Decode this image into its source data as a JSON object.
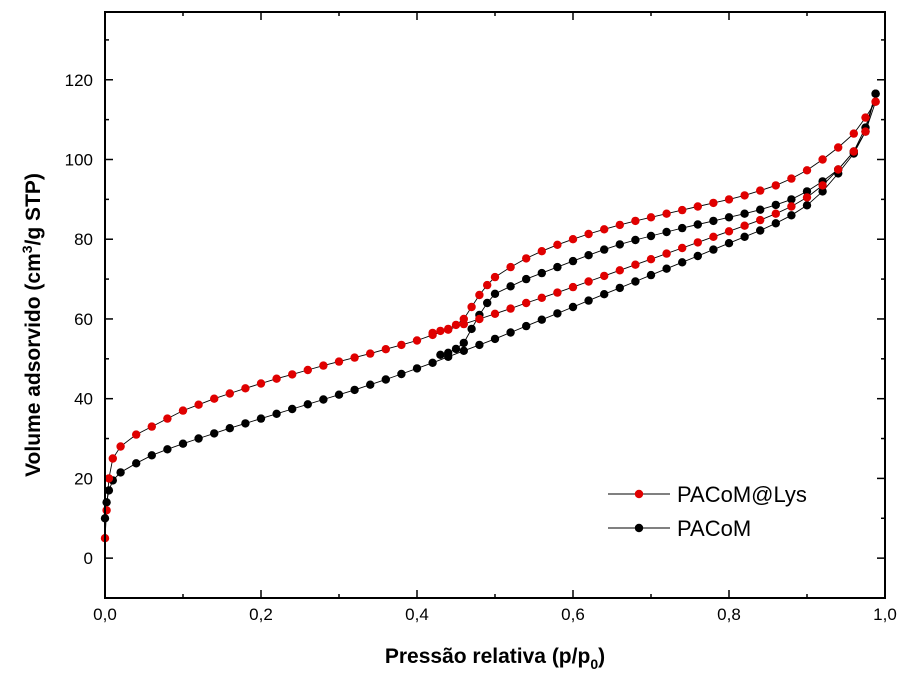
{
  "chart_data": {
    "type": "scatter",
    "title": "",
    "xlabel": "Pressão relativa (p/p",
    "xlabel_sub": "0",
    "xlabel_end": ")",
    "ylabel": "Volume adsorvido (cm",
    "ylabel_sup": "3",
    "ylabel_end": "/g STP)",
    "xlim": [
      0.0,
      1.0
    ],
    "ylim": [
      -10,
      137
    ],
    "xticks": [
      0.0,
      0.2,
      0.4,
      0.6,
      0.8,
      1.0
    ],
    "xtick_labels": [
      "0,0",
      "0,2",
      "0,4",
      "0,6",
      "0,8",
      "1,0"
    ],
    "yticks": [
      0,
      20,
      40,
      60,
      80,
      100,
      120
    ],
    "ytick_labels": [
      "0",
      "20",
      "40",
      "60",
      "80",
      "100",
      "120"
    ],
    "grid": false,
    "legend_position": "lower-right",
    "series": [
      {
        "name": "PACoM@Lys",
        "color": "#e00000",
        "adsorption": {
          "x": [
            0.0,
            0.002,
            0.005,
            0.01,
            0.02,
            0.04,
            0.06,
            0.08,
            0.1,
            0.12,
            0.14,
            0.16,
            0.18,
            0.2,
            0.22,
            0.24,
            0.26,
            0.28,
            0.3,
            0.32,
            0.34,
            0.36,
            0.38,
            0.4,
            0.42,
            0.44,
            0.46,
            0.48,
            0.5,
            0.52,
            0.54,
            0.56,
            0.58,
            0.6,
            0.62,
            0.64,
            0.66,
            0.68,
            0.7,
            0.72,
            0.74,
            0.76,
            0.78,
            0.8,
            0.82,
            0.84,
            0.86,
            0.88,
            0.9,
            0.92,
            0.94,
            0.96,
            0.975,
            0.988
          ],
          "y": [
            5,
            12,
            20,
            25,
            28,
            31,
            33,
            35,
            37,
            38.5,
            40,
            41.3,
            42.6,
            43.8,
            45,
            46.1,
            47.2,
            48.3,
            49.3,
            50.3,
            51.3,
            52.4,
            53.5,
            54.6,
            56,
            57.3,
            58.7,
            60,
            61.3,
            62.6,
            64,
            65.3,
            66.6,
            68,
            69.4,
            70.8,
            72.2,
            73.6,
            75,
            76.4,
            77.8,
            79.2,
            80.6,
            82,
            83.4,
            84.8,
            86.4,
            88.2,
            90.5,
            93.5,
            97.5,
            102,
            107,
            114.5
          ]
        },
        "desorption": {
          "x": [
            0.988,
            0.975,
            0.96,
            0.94,
            0.92,
            0.9,
            0.88,
            0.86,
            0.84,
            0.82,
            0.8,
            0.78,
            0.76,
            0.74,
            0.72,
            0.7,
            0.68,
            0.66,
            0.64,
            0.62,
            0.6,
            0.58,
            0.56,
            0.54,
            0.52,
            0.5,
            0.49,
            0.48,
            0.47,
            0.46,
            0.45,
            0.44,
            0.43,
            0.42
          ],
          "y": [
            114.5,
            110.5,
            106.5,
            103,
            100,
            97.3,
            95.2,
            93.5,
            92.2,
            91,
            90,
            89.1,
            88.2,
            87.3,
            86.4,
            85.5,
            84.6,
            83.6,
            82.5,
            81.3,
            80,
            78.6,
            77,
            75.2,
            73,
            70.5,
            68.5,
            66,
            63,
            60,
            58.5,
            57.5,
            57,
            56.5
          ]
        }
      },
      {
        "name": "PACoM",
        "color": "#000000",
        "adsorption": {
          "x": [
            0.0,
            0.002,
            0.005,
            0.01,
            0.02,
            0.04,
            0.06,
            0.08,
            0.1,
            0.12,
            0.14,
            0.16,
            0.18,
            0.2,
            0.22,
            0.24,
            0.26,
            0.28,
            0.3,
            0.32,
            0.34,
            0.36,
            0.38,
            0.4,
            0.42,
            0.44,
            0.46,
            0.48,
            0.5,
            0.52,
            0.54,
            0.56,
            0.58,
            0.6,
            0.62,
            0.64,
            0.66,
            0.68,
            0.7,
            0.72,
            0.74,
            0.76,
            0.78,
            0.8,
            0.82,
            0.84,
            0.86,
            0.88,
            0.9,
            0.92,
            0.94,
            0.96,
            0.975,
            0.988
          ],
          "y": [
            10,
            14,
            17,
            19.5,
            21.5,
            23.8,
            25.8,
            27.3,
            28.7,
            30,
            31.3,
            32.6,
            33.8,
            35,
            36.2,
            37.4,
            38.6,
            39.8,
            41,
            42.2,
            43.5,
            44.8,
            46.2,
            47.6,
            49,
            50.5,
            52,
            53.5,
            55,
            56.6,
            58.2,
            59.8,
            61.4,
            63,
            64.6,
            66.2,
            67.8,
            69.4,
            71,
            72.6,
            74.2,
            75.8,
            77.4,
            79,
            80.6,
            82.2,
            84,
            86,
            88.5,
            92,
            96.5,
            101.5,
            107,
            116.5
          ]
        },
        "desorption": {
          "x": [
            0.988,
            0.975,
            0.96,
            0.94,
            0.92,
            0.9,
            0.88,
            0.86,
            0.84,
            0.82,
            0.8,
            0.78,
            0.76,
            0.74,
            0.72,
            0.7,
            0.68,
            0.66,
            0.64,
            0.62,
            0.6,
            0.58,
            0.56,
            0.54,
            0.52,
            0.5,
            0.49,
            0.48,
            0.47,
            0.46,
            0.45,
            0.44,
            0.43
          ],
          "y": [
            116.5,
            108,
            102,
            97.5,
            94.5,
            92,
            90,
            88.6,
            87.4,
            86.4,
            85.5,
            84.6,
            83.7,
            82.8,
            81.8,
            80.8,
            79.8,
            78.7,
            77.4,
            76,
            74.5,
            73,
            71.5,
            70,
            68.2,
            66.3,
            64,
            61,
            57.5,
            54,
            52.5,
            51.5,
            51
          ]
        }
      }
    ]
  }
}
